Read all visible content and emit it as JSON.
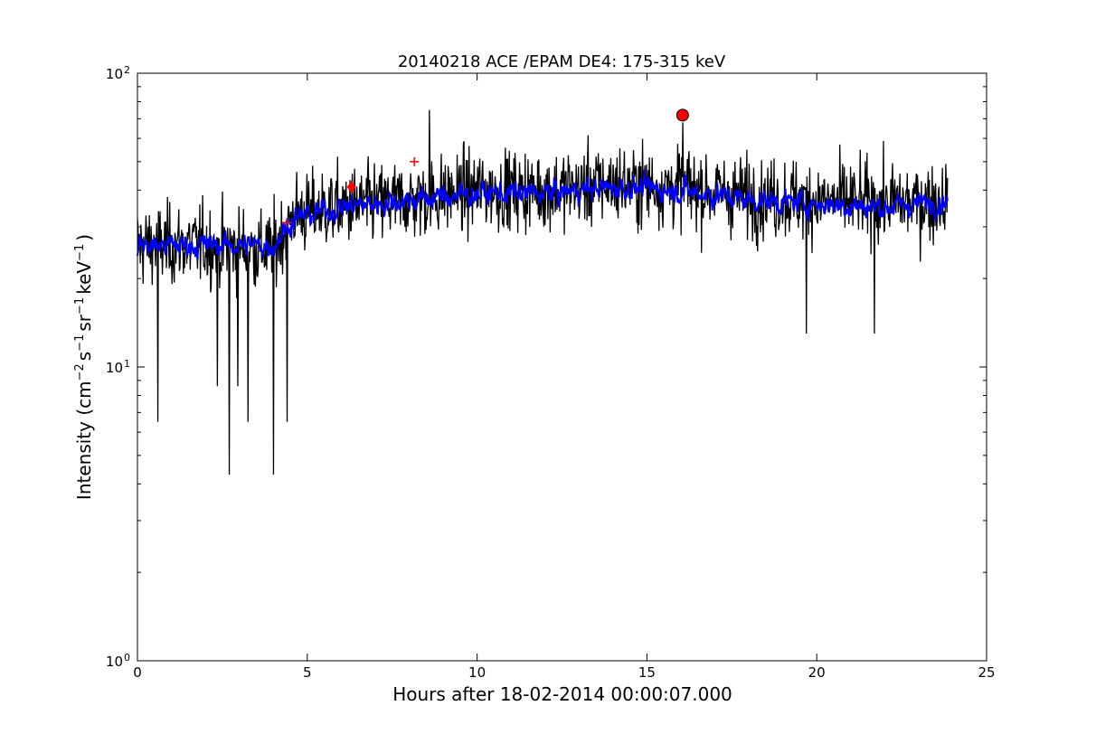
{
  "chart_data": {
    "type": "line",
    "title": "20140218 ACE /EPAM DE4: 175-315 keV",
    "xlabel": "Hours after 18-02-2014 00:00:07.000",
    "ylabel": {
      "prefix": "Intensity (cm",
      "exp1": "−2",
      "part2": "s",
      "exp2": "−1",
      "part3": "sr",
      "exp3": "−1",
      "part4": "keV",
      "exp4": "−1",
      "suffix": ")"
    },
    "xlim": [
      0,
      25
    ],
    "ylim": [
      1,
      100
    ],
    "yscale": "log",
    "xticks": [
      0,
      5,
      10,
      15,
      20,
      25
    ],
    "yticks": [
      {
        "value": 1,
        "base": "10",
        "exp": "0"
      },
      {
        "value": 10,
        "base": "10",
        "exp": "1"
      },
      {
        "value": 100,
        "base": "10",
        "exp": "2"
      }
    ],
    "grid": false,
    "series": [
      {
        "color": "#000000",
        "profile": [
          [
            0,
            26
          ],
          [
            2,
            26
          ],
          [
            4,
            25
          ],
          [
            4.6,
            33
          ],
          [
            6,
            35
          ],
          [
            8,
            37
          ],
          [
            10,
            40
          ],
          [
            12,
            40
          ],
          [
            14,
            42
          ],
          [
            16,
            41
          ],
          [
            18,
            38
          ],
          [
            20,
            37
          ],
          [
            22,
            36
          ],
          [
            23.85,
            37
          ]
        ],
        "sample_count": 1430,
        "extremes": [
          {
            "x": 0.6,
            "y": 6.5
          },
          {
            "x": 2.7,
            "y": 4.3
          },
          {
            "x": 2.95,
            "y": 8.6
          },
          {
            "x": 2.35,
            "y": 8.6
          },
          {
            "x": 3.25,
            "y": 6.5
          },
          {
            "x": 4.0,
            "y": 4.3
          },
          {
            "x": 4.4,
            "y": 6.5
          },
          {
            "x": 8.6,
            "y": 75
          },
          {
            "x": 16.05,
            "y": 68
          },
          {
            "x": 21.7,
            "y": 13
          },
          {
            "x": 19.7,
            "y": 13
          }
        ]
      },
      {
        "color": "#0000ff",
        "profile": [
          [
            0,
            26
          ],
          [
            2,
            26
          ],
          [
            4,
            26
          ],
          [
            4.6,
            32
          ],
          [
            6,
            35
          ],
          [
            8,
            37
          ],
          [
            10,
            39
          ],
          [
            12,
            39
          ],
          [
            14,
            41
          ],
          [
            16,
            40
          ],
          [
            18,
            37
          ],
          [
            20,
            36
          ],
          [
            22,
            35
          ],
          [
            23.85,
            37
          ]
        ]
      }
    ],
    "markers": [
      {
        "shape": "circle",
        "x": 16.05,
        "y": 72,
        "color": "#ff0000"
      },
      {
        "shape": "diamond",
        "x": 6.3,
        "y": 41,
        "color": "#ff0000"
      },
      {
        "shape": "plus",
        "x": 8.15,
        "y": 50,
        "color": "#ff0000"
      },
      {
        "shape": "plus",
        "x": 4.4,
        "y": 31,
        "color": "#ff0000"
      }
    ]
  }
}
